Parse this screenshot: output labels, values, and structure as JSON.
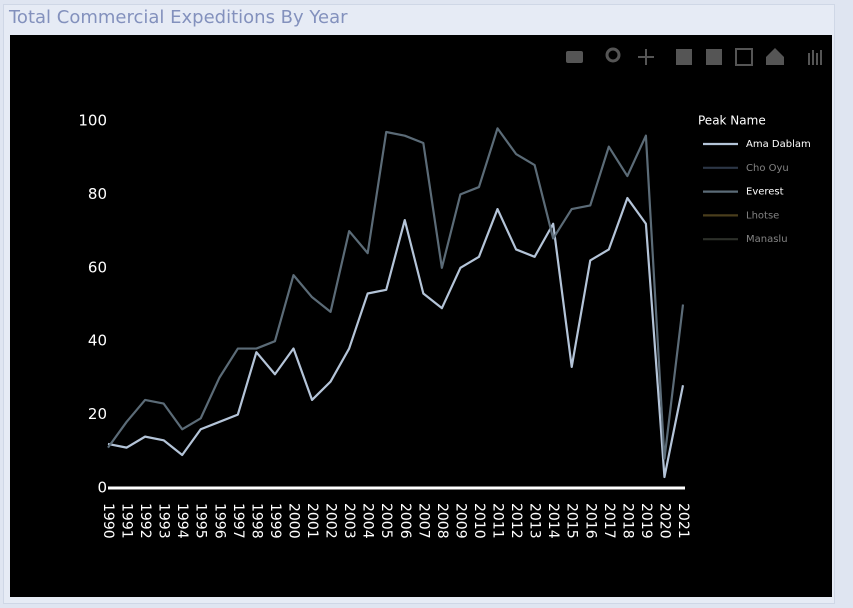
{
  "chart_data": {
    "type": "line",
    "title": "Total Commercial Expeditions By Year",
    "categories": [
      "1990",
      "1991",
      "1992",
      "1993",
      "1994",
      "1995",
      "1996",
      "1997",
      "1998",
      "1999",
      "2000",
      "2001",
      "2002",
      "2003",
      "2004",
      "2005",
      "2006",
      "2007",
      "2008",
      "2009",
      "2010",
      "2011",
      "2012",
      "2013",
      "2014",
      "2015",
      "2016",
      "2017",
      "2018",
      "2019",
      "2020",
      "2021"
    ],
    "legend_title": "Peak Name",
    "series": [
      {
        "name": "Ama Dablam",
        "color": "#b4c4d8",
        "visible": true,
        "values": [
          12,
          11,
          14,
          13,
          9,
          16,
          18,
          20,
          37,
          31,
          38,
          24,
          29,
          38,
          53,
          54,
          73,
          53,
          49,
          60,
          63,
          76,
          65,
          63,
          72,
          33,
          62,
          65,
          79,
          72,
          3,
          28
        ]
      },
      {
        "name": "Cho Oyu",
        "color": "#2c3646",
        "visible": false
      },
      {
        "name": "Everest",
        "color": "#5b6b77",
        "visible": true,
        "values": [
          11,
          18,
          24,
          23,
          16,
          19,
          30,
          38,
          38,
          40,
          58,
          52,
          48,
          70,
          64,
          97,
          96,
          94,
          60,
          80,
          82,
          98,
          91,
          88,
          68,
          76,
          77,
          93,
          85,
          96,
          8,
          50
        ]
      },
      {
        "name": "Lhotse",
        "color": "#4a3e1c",
        "visible": false
      },
      {
        "name": "Manaslu",
        "color": "#2d302a",
        "visible": false
      }
    ],
    "ylim": [
      0,
      100
    ],
    "yticks": [
      0,
      20,
      40,
      60,
      80,
      100
    ],
    "grid": false
  }
}
